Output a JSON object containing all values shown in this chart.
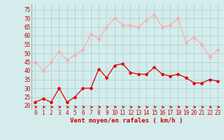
{
  "xlabel": "Vent moyen/en rafales ( km/h )",
  "hours": [
    0,
    1,
    2,
    3,
    4,
    5,
    6,
    7,
    8,
    9,
    10,
    11,
    12,
    13,
    14,
    15,
    16,
    17,
    18,
    19,
    20,
    21,
    22,
    23
  ],
  "wind_avg": [
    22,
    24,
    22,
    30,
    22,
    25,
    30,
    30,
    41,
    36,
    43,
    44,
    39,
    38,
    38,
    42,
    38,
    37,
    38,
    36,
    33,
    33,
    35,
    34
  ],
  "wind_gust": [
    45,
    40,
    45,
    51,
    46,
    49,
    52,
    61,
    58,
    65,
    70,
    66,
    66,
    65,
    69,
    72,
    65,
    66,
    70,
    56,
    59,
    55,
    48,
    52
  ],
  "avg_color": "#dd0000",
  "gust_color": "#ffaaaa",
  "bg_color": "#d4ecec",
  "grid_color": "#aacccc",
  "yticks": [
    20,
    25,
    30,
    35,
    40,
    45,
    50,
    55,
    60,
    65,
    70,
    75
  ],
  "ylim": [
    18,
    78
  ],
  "xlim": [
    -0.5,
    23.5
  ],
  "marker_size": 2.2,
  "linewidth": 0.9,
  "xlabel_color": "#cc0000",
  "tick_color": "#cc0000",
  "arrow_color": "#cc0000",
  "tick_fontsize": 5.5,
  "xlabel_fontsize": 6.5
}
